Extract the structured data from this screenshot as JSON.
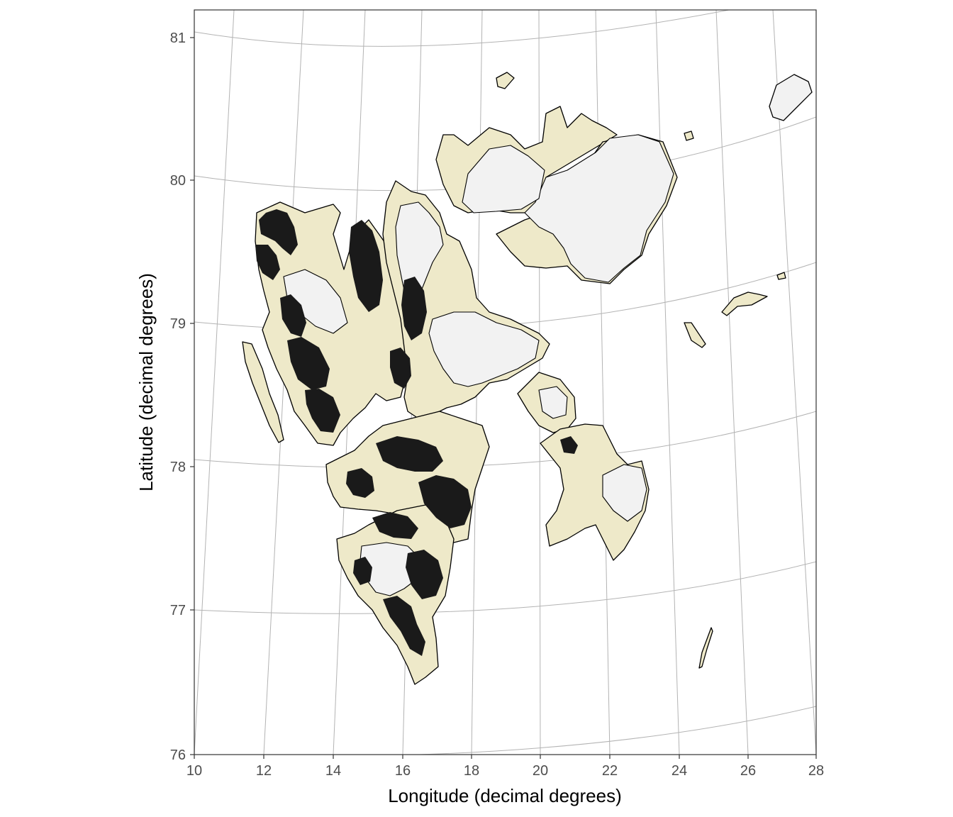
{
  "map": {
    "xlabel": "Longitude (decimal degrees)",
    "ylabel": "Latitude (decimal degrees)",
    "x_ticks": [
      "10",
      "12",
      "14",
      "16",
      "18",
      "20",
      "22",
      "24",
      "26",
      "28"
    ],
    "y_ticks": [
      "76",
      "77",
      "78",
      "79",
      "80",
      "81"
    ],
    "colors": {
      "land": "#eee9c9",
      "glacier": "#f2f2f2",
      "mountain": "#1a1a1a",
      "grid": "#b3b3b3",
      "frame": "#000000"
    }
  },
  "chart_data": {
    "type": "map",
    "region": "Svalbard",
    "xlim": [
      10,
      28
    ],
    "ylim": [
      76,
      81.2
    ],
    "xlabel": "Longitude (decimal degrees)",
    "ylabel": "Latitude (decimal degrees)",
    "x_ticks": [
      10,
      12,
      14,
      16,
      18,
      20,
      22,
      24,
      26,
      28
    ],
    "y_ticks": [
      76,
      77,
      78,
      79,
      80,
      81
    ],
    "layers": [
      "land",
      "glacier",
      "mountain"
    ]
  }
}
